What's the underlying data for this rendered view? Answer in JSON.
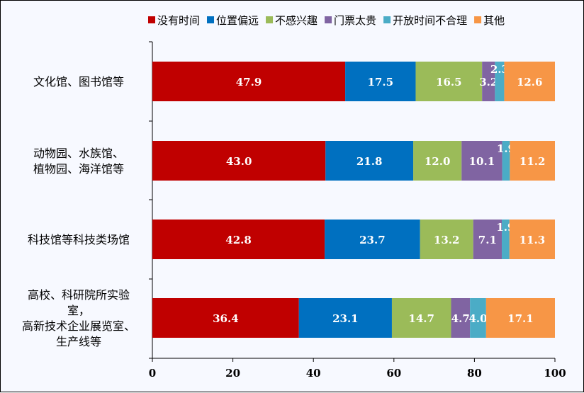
{
  "chart_data": {
    "type": "bar",
    "orientation": "horizontal",
    "stacked": true,
    "title": "",
    "xlabel": "",
    "ylabel": "",
    "xlim": [
      0,
      100
    ],
    "xticks": [
      0,
      20,
      40,
      60,
      80,
      100
    ],
    "grid": false,
    "legend_position": "top-right",
    "categories": [
      [
        "文化馆、图书馆等"
      ],
      [
        "动物园、水族馆、",
        "植物园、海洋馆等"
      ],
      [
        "科技馆等科技类场馆"
      ],
      [
        "高校、科研院所实验",
        "室，",
        "高新技术企业展览室、",
        "生产线等"
      ]
    ],
    "series": [
      {
        "name": "没有时间",
        "color": "#c00000",
        "values": [
          47.9,
          43.0,
          42.8,
          36.4
        ],
        "labels": [
          "47.9",
          "43.0",
          "42.8",
          "36.4"
        ]
      },
      {
        "name": "位置偏远",
        "color": "#0070c0",
        "values": [
          17.5,
          21.8,
          23.7,
          23.1
        ],
        "labels": [
          "17.5",
          "21.8",
          "23.7",
          "23.1"
        ]
      },
      {
        "name": "不感兴趣",
        "color": "#9bbb59",
        "values": [
          16.5,
          12.0,
          13.2,
          14.7
        ],
        "labels": [
          "16.5",
          "12.0",
          "13.2",
          "14.7"
        ]
      },
      {
        "name": "门票太贵",
        "color": "#8064a2",
        "values": [
          3.2,
          10.1,
          7.1,
          4.7
        ],
        "labels": [
          "3.2",
          "10.1",
          "7.1",
          "4.7"
        ]
      },
      {
        "name": "开放时间不合理",
        "color": "#4bacc6",
        "values": [
          2.3,
          1.9,
          1.9,
          4.0
        ],
        "labels": [
          "2.3",
          "1.9",
          "1.9",
          "4.0"
        ]
      },
      {
        "name": "其他",
        "color": "#f79646",
        "values": [
          12.6,
          11.2,
          11.3,
          17.1
        ],
        "labels": [
          "12.6",
          "11.2",
          "11.3",
          "17.1"
        ]
      }
    ]
  }
}
